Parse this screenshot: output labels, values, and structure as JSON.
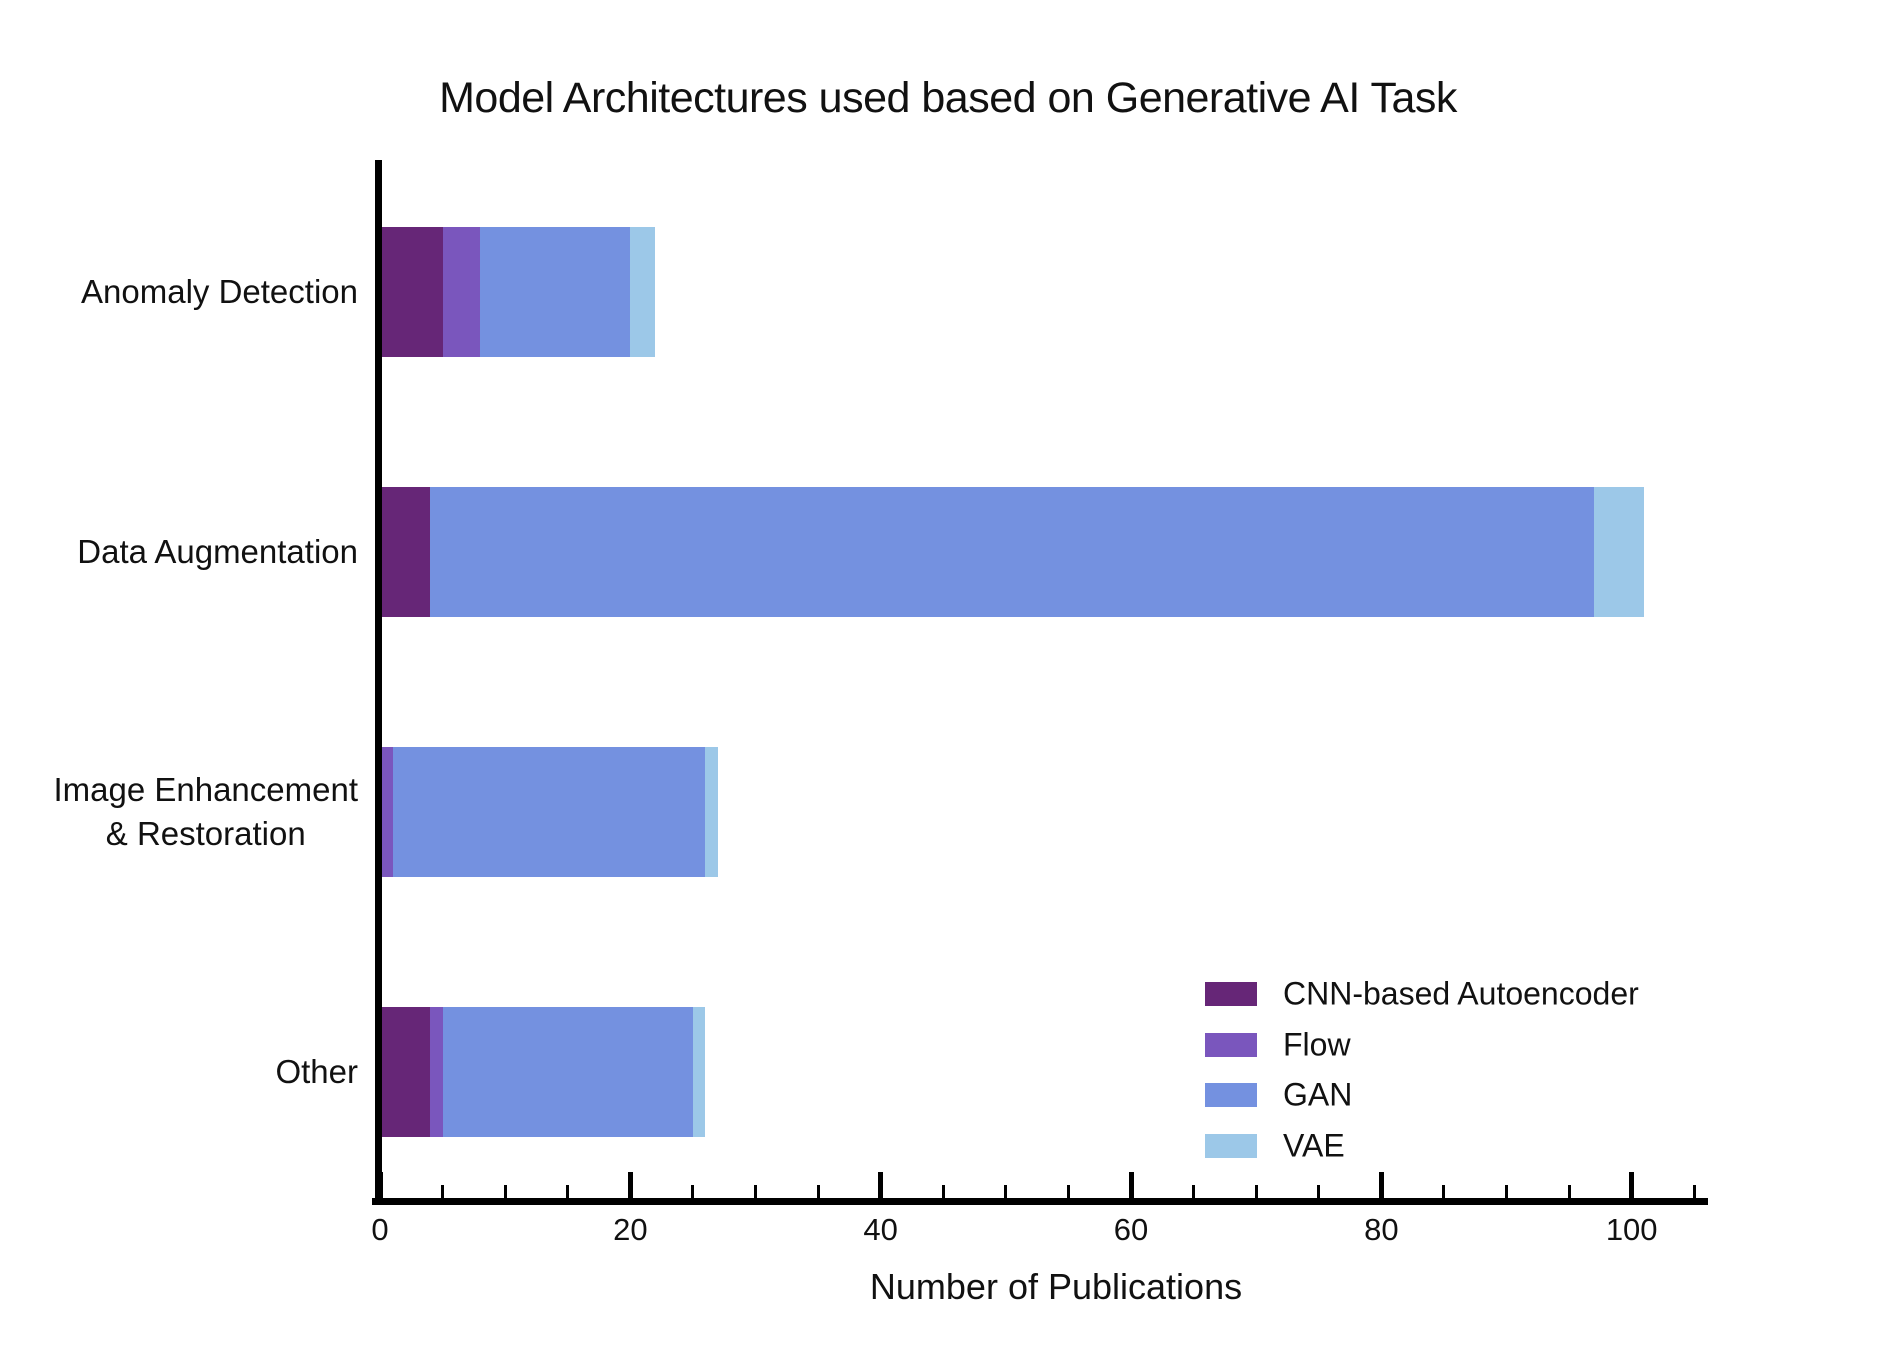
{
  "chart_data": {
    "type": "bar",
    "orientation": "horizontal",
    "stacked": true,
    "title": "Model Architectures used based on Generative AI Task",
    "xlabel": "Number of Publications",
    "ylabel": "",
    "categories": [
      "Anomaly Detection",
      "Data Augmentation",
      "Image Enhancement\n& Restoration",
      "Other"
    ],
    "series": [
      {
        "name": "CNN-based Autoencoder",
        "color": "#662677",
        "values": [
          5,
          4,
          0,
          4
        ]
      },
      {
        "name": "Flow",
        "color": "#7a56bd",
        "values": [
          3,
          0,
          1,
          1
        ]
      },
      {
        "name": "GAN",
        "color": "#7491e0",
        "values": [
          12,
          93,
          25,
          20
        ]
      },
      {
        "name": "VAE",
        "color": "#9cc8e8",
        "values": [
          2,
          4,
          1,
          1
        ]
      }
    ],
    "category_totals": [
      22,
      101,
      27,
      26
    ],
    "xlim": [
      0,
      106
    ],
    "x_major_ticks": [
      0,
      20,
      40,
      60,
      80,
      100
    ],
    "x_minor_tick_step": 5,
    "x_minor_tick_max": 105,
    "grid": false,
    "legend_position": "lower right",
    "axis_color": "#000000",
    "background_color": "#ffffff",
    "text_color": "#111111"
  }
}
